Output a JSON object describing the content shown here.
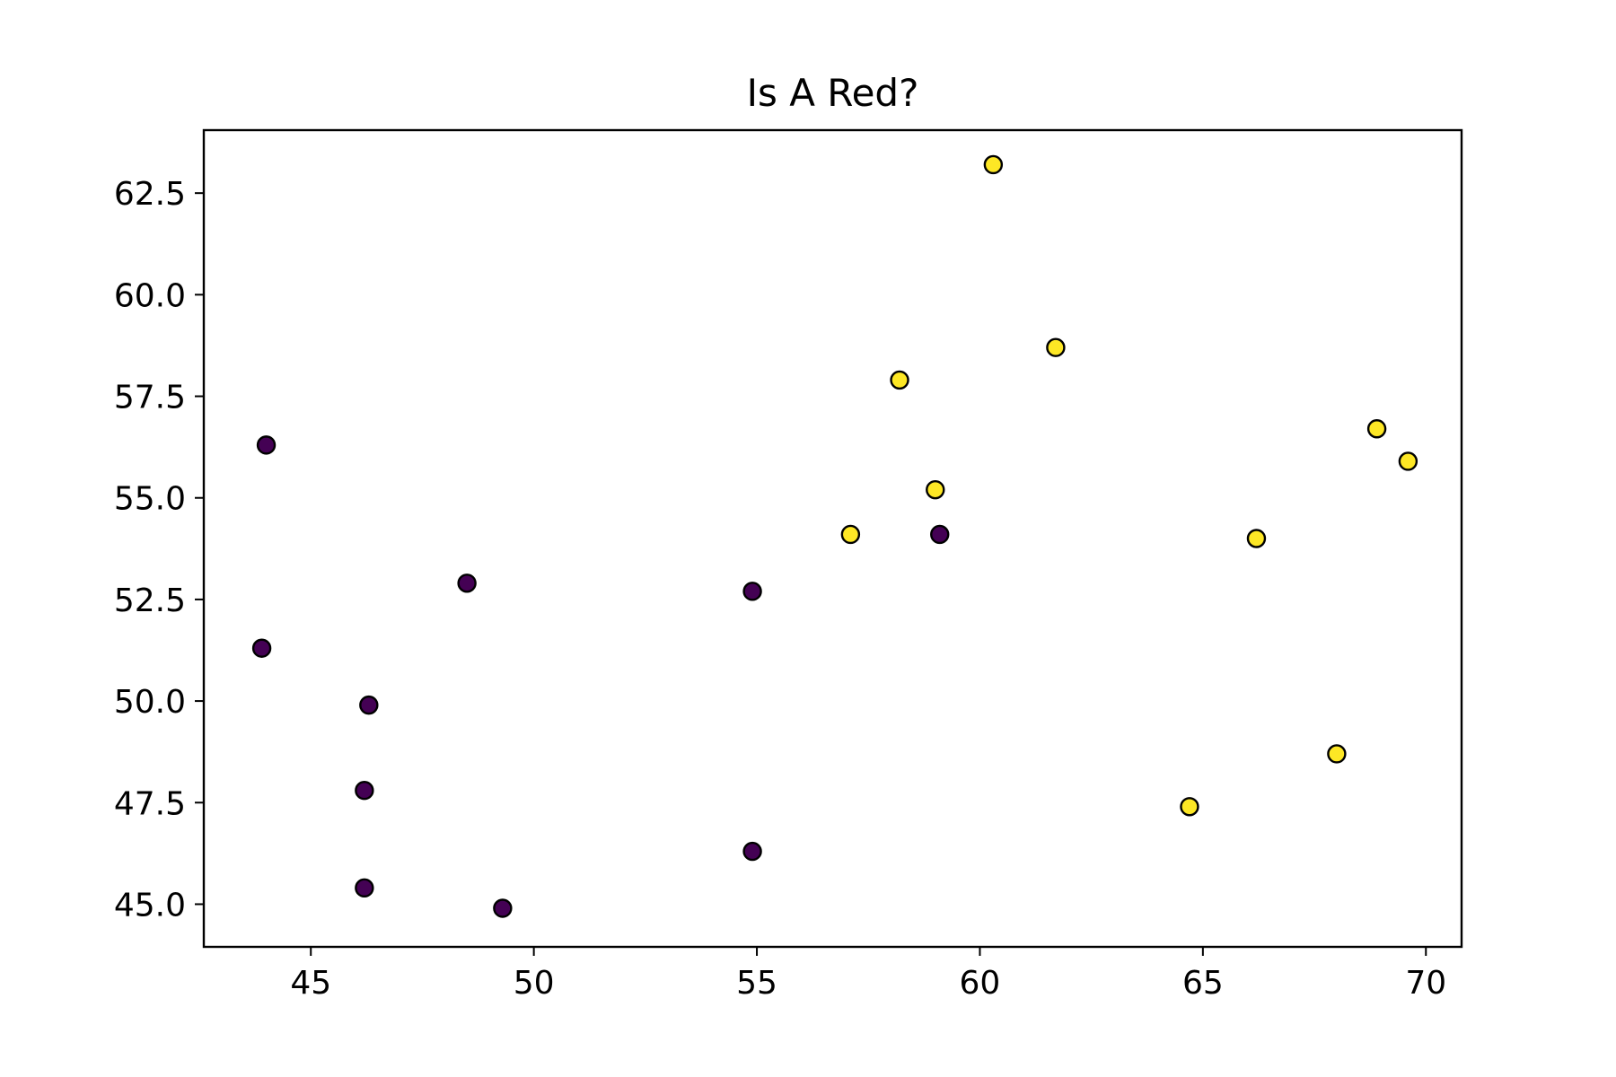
{
  "chart_data": {
    "type": "scatter",
    "title": "Is A Red?",
    "xlabel": "",
    "ylabel": "",
    "xlim": [
      42.6,
      70.8
    ],
    "ylim": [
      43.95,
      64.05
    ],
    "x_ticks": [
      45,
      50,
      55,
      60,
      65,
      70
    ],
    "x_tick_labels": [
      "45",
      "50",
      "55",
      "60",
      "65",
      "70"
    ],
    "y_ticks": [
      45.0,
      47.5,
      50.0,
      52.5,
      55.0,
      57.5,
      60.0,
      62.5
    ],
    "y_tick_labels": [
      "45.0",
      "47.5",
      "50.0",
      "52.5",
      "55.0",
      "57.5",
      "60.0",
      "62.5"
    ],
    "grid": false,
    "legend": "none",
    "colors": {
      "class_0": "#440154",
      "class_1": "#fde725",
      "edge": "#000000"
    },
    "series": [
      {
        "color": "#440154",
        "points": [
          [
            44.0,
            56.3
          ],
          [
            48.5,
            52.9
          ],
          [
            43.9,
            51.3
          ],
          [
            46.3,
            49.9
          ],
          [
            46.2,
            47.8
          ],
          [
            46.2,
            45.4
          ],
          [
            49.3,
            44.9
          ],
          [
            54.9,
            46.3
          ],
          [
            54.9,
            52.7
          ],
          [
            59.1,
            54.1
          ]
        ]
      },
      {
        "color": "#fde725",
        "points": [
          [
            60.3,
            63.2
          ],
          [
            58.2,
            57.9
          ],
          [
            61.7,
            58.7
          ],
          [
            59.0,
            55.2
          ],
          [
            57.1,
            54.1
          ],
          [
            66.2,
            54.0
          ],
          [
            68.9,
            56.7
          ],
          [
            69.6,
            55.9
          ],
          [
            68.0,
            48.7
          ],
          [
            64.7,
            47.4
          ]
        ]
      }
    ]
  }
}
